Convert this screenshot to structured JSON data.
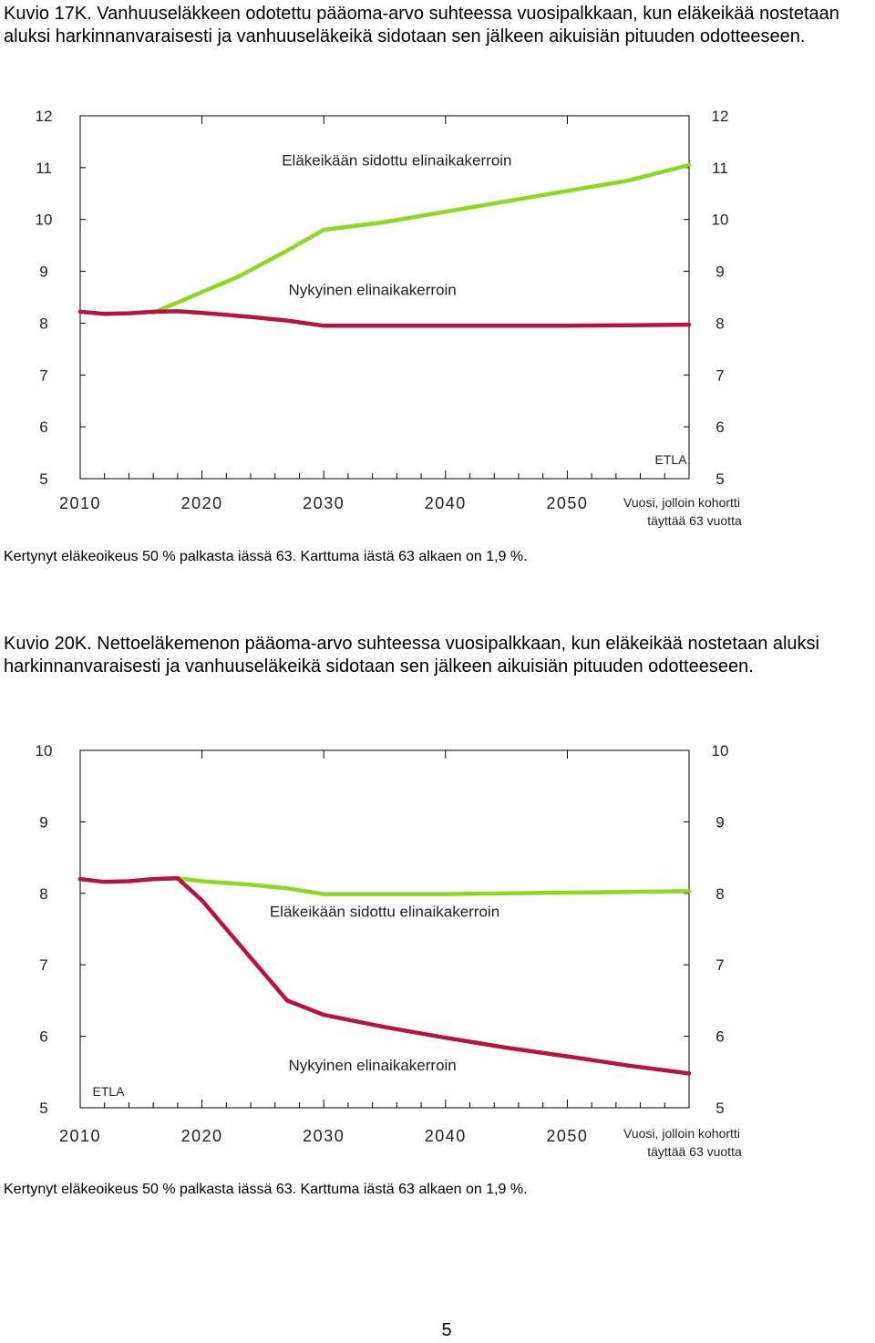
{
  "figures": [
    {
      "caption": "Kuvio 17K. Vanhuuseläkkeen odotettu pääoma-arvo suhteessa vuosipalkkaan, kun eläkeikää nostetaan aluksi harkinnanvaraisesti ja vanhuuseläkeikä sidotaan sen jälkeen aikuisiän pituuden odotteeseen.",
      "footnote": "Kertynyt eläkeoikeus 50 % palkasta iässä 63. Karttuma iästä 63 alkaen on 1,9 %.",
      "source": "ETLA",
      "xlabel_line1": "Vuosi, jolloin kohortti",
      "xlabel_line2": "täyttää 63 vuotta"
    },
    {
      "caption": "Kuvio 20K. Nettoeläkemenon pääoma-arvo suhteessa vuosipalkkaan, kun eläkeikää nostetaan aluksi harkinnanvaraisesti ja vanhuuseläkeikä sidotaan sen jälkeen aikuisiän pituuden odotteeseen.",
      "footnote": "Kertynyt eläkeoikeus 50 % palkasta iässä 63. Karttuma iästä 63 alkaen on 1,9 %.",
      "source": "ETLA",
      "xlabel_line1": "Vuosi, jolloin kohortti",
      "xlabel_line2": "täyttää 63 vuotta"
    }
  ],
  "page_number": "5",
  "chart_data": [
    {
      "type": "line",
      "xlim": [
        2010,
        2060
      ],
      "ylim": [
        5,
        12
      ],
      "xticks": [
        2010,
        2020,
        2030,
        2040,
        2050
      ],
      "yticks": [
        5,
        6,
        7,
        8,
        9,
        10,
        11,
        12
      ],
      "grid": false,
      "series": [
        {
          "name": "Eläkeikään sidottu elinaikakerroin",
          "color": "#8ed81f",
          "x": [
            2016,
            2020,
            2023,
            2027,
            2030,
            2035,
            2040,
            2045,
            2050,
            2055,
            2060
          ],
          "y": [
            8.2,
            8.6,
            8.9,
            9.4,
            9.8,
            9.95,
            10.15,
            10.35,
            10.55,
            10.75,
            11.05
          ]
        },
        {
          "name": "Nykyinen elinaikakerroin",
          "color": "#b8123e",
          "x": [
            2010,
            2012,
            2014,
            2016,
            2018,
            2020,
            2024,
            2027,
            2030,
            2035,
            2040,
            2045,
            2050,
            2055,
            2060
          ],
          "y": [
            8.22,
            8.18,
            8.19,
            8.22,
            8.23,
            8.2,
            8.12,
            8.05,
            7.95,
            7.95,
            7.95,
            7.95,
            7.95,
            7.96,
            7.97
          ]
        }
      ],
      "labels": [
        {
          "text": "Eläkeikään sidottu elinaikakerroin",
          "x": 2036,
          "y": 11.15
        },
        {
          "text": "Nykyinen elinaikakerroin",
          "x": 2034,
          "y": 8.65
        }
      ]
    },
    {
      "type": "line",
      "xlim": [
        2010,
        2060
      ],
      "ylim": [
        5,
        10
      ],
      "xticks": [
        2010,
        2020,
        2030,
        2040,
        2050
      ],
      "yticks": [
        5,
        6,
        7,
        8,
        9,
        10
      ],
      "grid": false,
      "series": [
        {
          "name": "Eläkeikään sidottu elinaikakerroin",
          "color": "#8ed81f",
          "x": [
            2016,
            2018,
            2020,
            2024,
            2027,
            2030,
            2035,
            2040,
            2045,
            2050,
            2055,
            2060
          ],
          "y": [
            8.2,
            8.21,
            8.17,
            8.12,
            8.07,
            7.99,
            7.99,
            7.99,
            8.0,
            8.01,
            8.02,
            8.03
          ]
        },
        {
          "name": "Nykyinen elinaikakerroin",
          "color": "#b8123e",
          "x": [
            2010,
            2012,
            2014,
            2016,
            2018,
            2020,
            2024,
            2027,
            2030,
            2035,
            2040,
            2045,
            2050,
            2055,
            2060
          ],
          "y": [
            8.2,
            8.16,
            8.17,
            8.2,
            8.21,
            7.9,
            7.1,
            6.5,
            6.3,
            6.13,
            5.98,
            5.84,
            5.72,
            5.59,
            5.48
          ]
        }
      ],
      "labels": [
        {
          "text": "Eläkeikään sidottu elinaikakerroin",
          "x": 2035,
          "y": 7.75
        },
        {
          "text": "Nykyinen elinaikakerroin",
          "x": 2034,
          "y": 5.6
        }
      ]
    }
  ]
}
